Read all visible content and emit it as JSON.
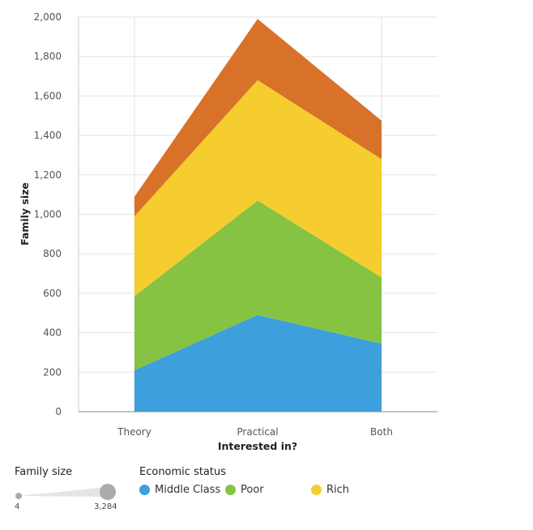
{
  "chart_data": {
    "type": "area",
    "stacked": true,
    "categories": [
      "Theory",
      "Practical",
      "Both"
    ],
    "series": [
      {
        "name": "Middle Class",
        "values": [
          210,
          490,
          345
        ]
      },
      {
        "name": "Poor",
        "values": [
          375,
          580,
          335
        ]
      },
      {
        "name": "Rich",
        "values": [
          405,
          610,
          600
        ]
      },
      {
        "name": "",
        "values": [
          100,
          310,
          195
        ]
      }
    ],
    "colors": [
      "#3d9fdc",
      "#86c342",
      "#f5cd2e",
      "#d87228"
    ],
    "xlabel": "Interested in?",
    "ylabel": "Family size",
    "ylim": [
      0,
      2000
    ],
    "yticks": [
      "0",
      "200",
      "400",
      "600",
      "800",
      "1,000",
      "1,200",
      "1,400",
      "1,600",
      "1,800",
      "2,000"
    ],
    "grid": true
  },
  "legend_size": {
    "title": "Family size",
    "min_label": "4",
    "max_label": "3,284",
    "color": "#a9abad"
  },
  "legend_color": {
    "title": "Economic status",
    "items": [
      "Middle Class",
      "Poor",
      "Rich"
    ]
  }
}
